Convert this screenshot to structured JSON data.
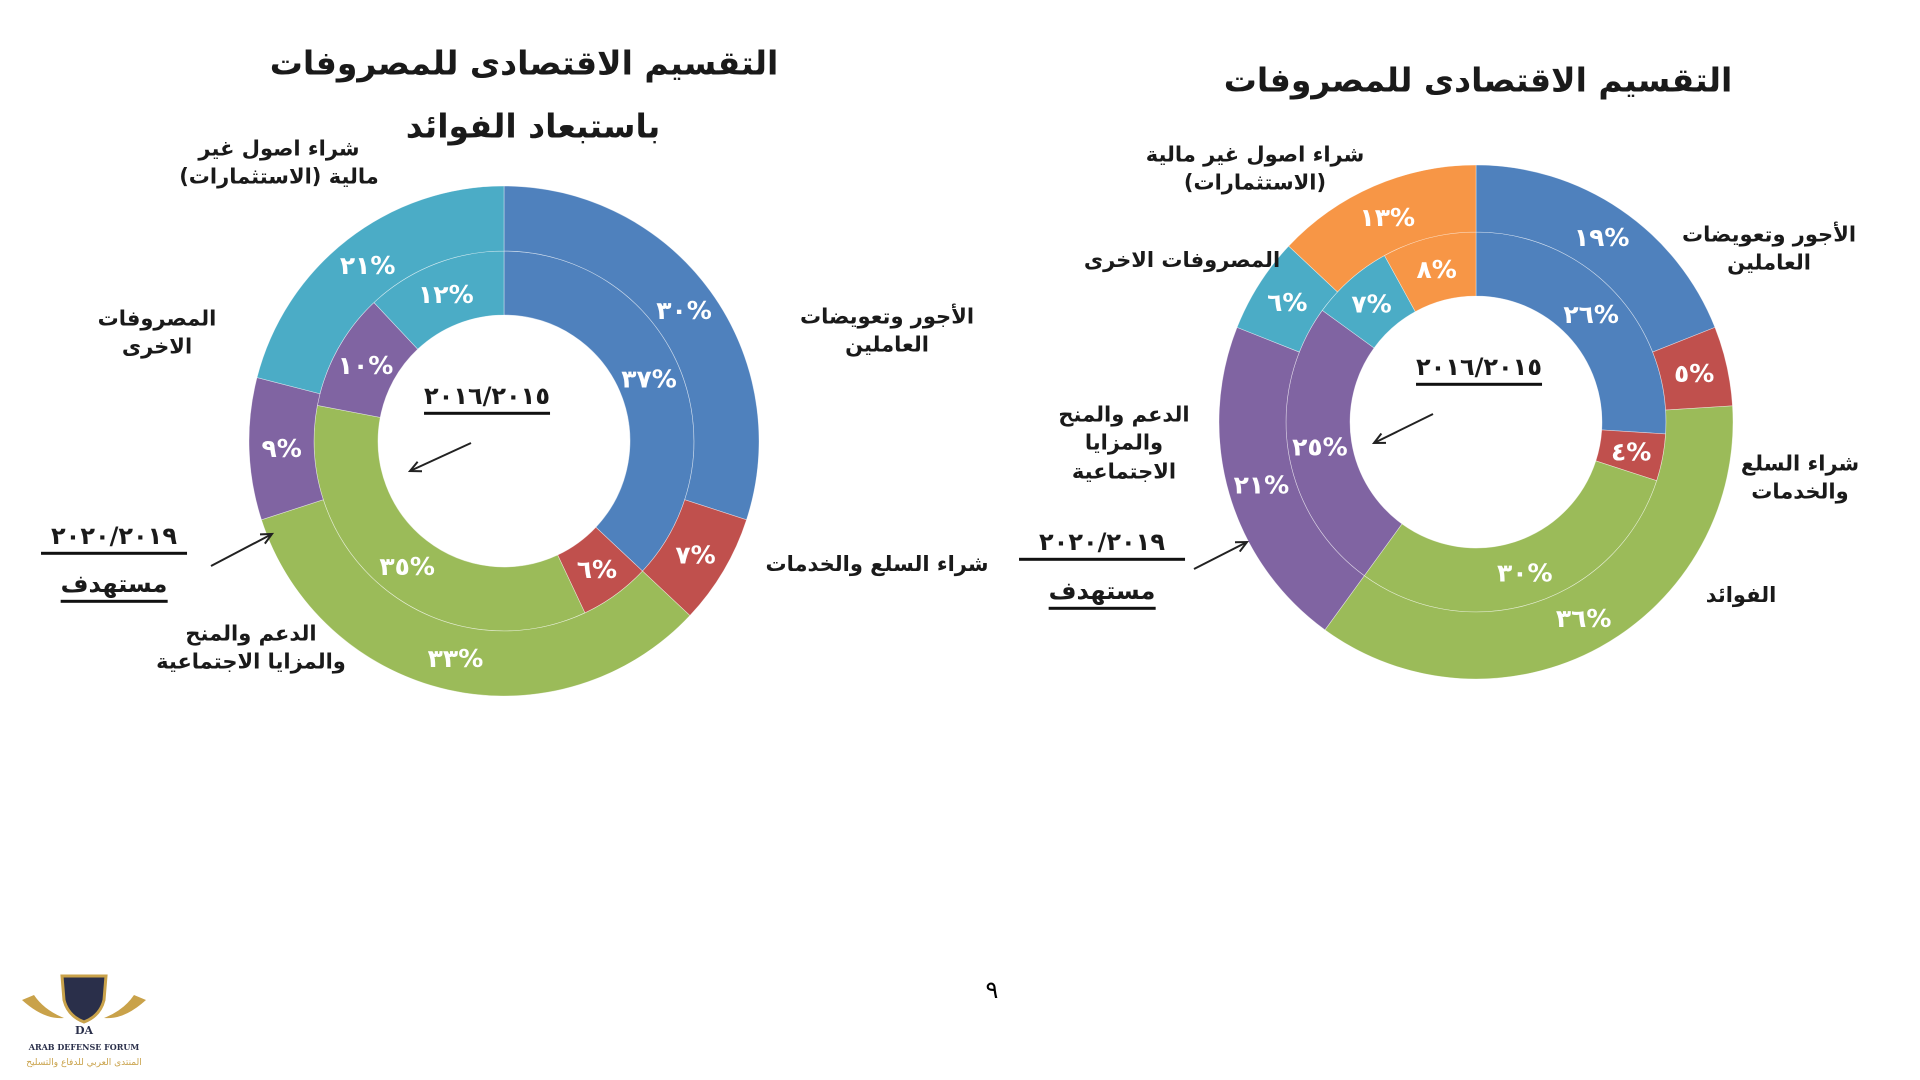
{
  "chart_data": [
    {
      "type": "donut",
      "title": "التقسيم الاقتصادى للمصروفات باستبعاد الفوائد",
      "title_lines": [
        "التقسيم الاقتصادى للمصروفات",
        "باستبعاد الفوائد"
      ],
      "categories": [
        "الأجور وتعويضات العاملين",
        "شراء السلع والخدمات",
        "الدعم والمنح والمزايا الاجتماعية",
        "المصروفات الاخرى",
        "شراء اصول غير مالية (الاستثمارات)"
      ],
      "category_lines": [
        [
          "الأجور وتعويضات",
          "العاملين"
        ],
        [
          "شراء السلع والخدمات"
        ],
        [
          "الدعم والمنح",
          "والمزايا الاجتماعية"
        ],
        [
          "المصروفات",
          "الاخرى"
        ],
        [
          "شراء اصول غير",
          "مالية (الاستثمارات)"
        ]
      ],
      "colors": [
        "#4f81bd",
        "#c0504d",
        "#9bbb59",
        "#8064a2",
        "#4bacc6"
      ],
      "series": [
        {
          "name": "٢٠١٦/٢٠١٥",
          "ring": "inner",
          "values": [
            37,
            6,
            35,
            10,
            12
          ],
          "labels": [
            "٣٧%",
            "٦%",
            "٣٥%",
            "١٠%",
            "١٢%"
          ]
        },
        {
          "name": "٢٠٢٠/٢٠١٩",
          "ring": "outer",
          "values": [
            30,
            7,
            33,
            9,
            21
          ],
          "labels": [
            "٣٠%",
            "٧%",
            "٣٣%",
            "٩%",
            "٢١%"
          ]
        }
      ],
      "inner_caption": "٢٠١٦/٢٠١٥",
      "outer_caption": "٢٠٢٠/٢٠١٩",
      "outer_caption_note": "مستهدف"
    },
    {
      "type": "donut",
      "title": "التقسيم الاقتصادى للمصروفات",
      "title_lines": [
        "التقسيم الاقتصادى للمصروفات"
      ],
      "categories": [
        "الأجور وتعويضات العاملين",
        "شراء السلع والخدمات",
        "الفوائد",
        "الدعم والمنح والمزايا الاجتماعية",
        "المصروفات الاخرى",
        "شراء اصول غير مالية (الاستثمارات)"
      ],
      "category_lines": [
        [
          "الأجور وتعويضات",
          "العاملين"
        ],
        [
          "شراء السلع",
          "والخدمات"
        ],
        [
          "الفوائد"
        ],
        [
          "الدعم والمنح",
          "والمزايا",
          "الاجتماعية"
        ],
        [
          "المصروفات الاخرى"
        ],
        [
          "شراء اصول غير مالية",
          "(الاستثمارات)"
        ]
      ],
      "colors": [
        "#4f81bd",
        "#c0504d",
        "#9bbb59",
        "#8064a2",
        "#4bacc6",
        "#f79646"
      ],
      "series": [
        {
          "name": "٢٠١٦/٢٠١٥",
          "ring": "inner",
          "values": [
            26,
            4,
            30,
            25,
            7,
            8
          ],
          "labels": [
            "٢٦%",
            "٤%",
            "٣٠%",
            "٢٥%",
            "٧%",
            "٨%"
          ]
        },
        {
          "name": "٢٠٢٠/٢٠١٩",
          "ring": "outer",
          "values": [
            19,
            5,
            36,
            21,
            6,
            13
          ],
          "labels": [
            "١٩%",
            "٥%",
            "٣٦%",
            "٢١%",
            "٦%",
            "١٣%"
          ]
        }
      ],
      "inner_caption": "٢٠١٦/٢٠١٥",
      "outer_caption": "٢٠٢٠/٢٠١٩",
      "outer_caption_note": "مستهدف"
    }
  ],
  "page_number": "٩",
  "logo": {
    "abbr": "DA",
    "name_en": "ARAB DEFENSE FORUM",
    "name_ar": "المنتدى العربي للدفاع والتسليح"
  }
}
